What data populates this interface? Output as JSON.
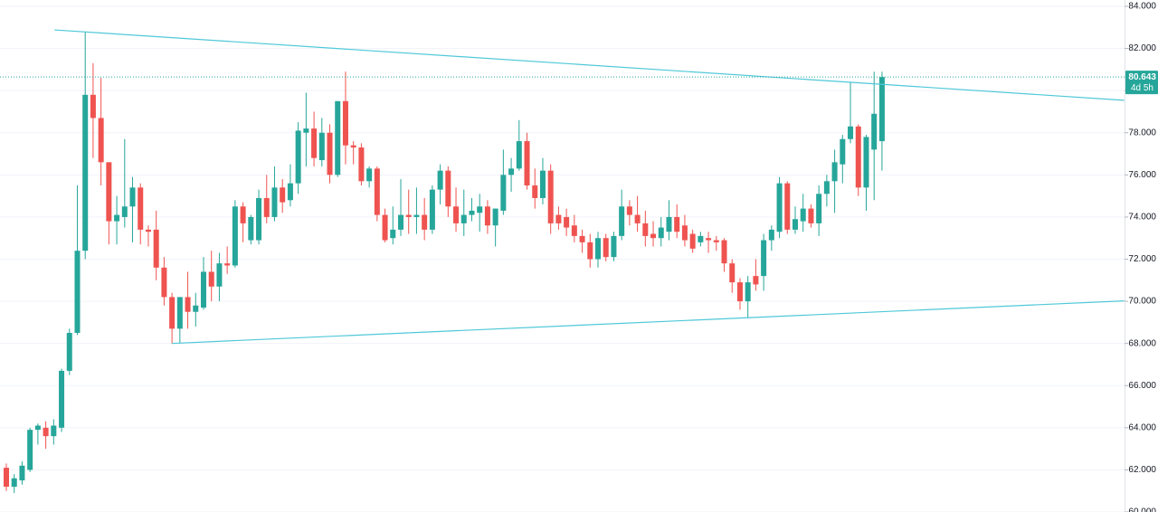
{
  "chart_data": {
    "type": "candlestick",
    "up_color": "#26a69a",
    "down_color": "#ef5350",
    "line_color": "#4fc8d8",
    "ylim": [
      60,
      84.3
    ],
    "yticks": [
      {
        "value": 60,
        "label": "60.000"
      },
      {
        "value": 62,
        "label": "62.000"
      },
      {
        "value": 64,
        "label": "64.000"
      },
      {
        "value": 66,
        "label": "66.000"
      },
      {
        "value": 68,
        "label": "68.000"
      },
      {
        "value": 70,
        "label": "70.000"
      },
      {
        "value": 72,
        "label": "72.000"
      },
      {
        "value": 74,
        "label": "74.000"
      },
      {
        "value": 76,
        "label": "76.000"
      },
      {
        "value": 78,
        "label": "78.000"
      },
      {
        "value": 80,
        "label": "80.000"
      },
      {
        "value": 82,
        "label": "82.000"
      },
      {
        "value": 84,
        "label": "84.000"
      }
    ],
    "grid": true,
    "last_price": 80.643,
    "countdown": "4d 5h",
    "trendlines": [
      {
        "x": [
          6.1,
          141.7
        ],
        "y": [
          82.88,
          79.54
        ]
      },
      {
        "x": [
          21.0,
          141.7
        ],
        "y": [
          68.0,
          70.02
        ]
      }
    ],
    "ohlc": [
      [
        62.1,
        62.3,
        61.0,
        61.2
      ],
      [
        61.2,
        61.8,
        60.9,
        61.6
      ],
      [
        61.5,
        62.4,
        61.3,
        62.2
      ],
      [
        62.0,
        64.0,
        61.9,
        63.9
      ],
      [
        63.9,
        64.2,
        63.2,
        64.1
      ],
      [
        64.0,
        64.3,
        63.0,
        63.6
      ],
      [
        63.6,
        64.4,
        63.2,
        64.1
      ],
      [
        64.0,
        66.8,
        63.8,
        66.7
      ],
      [
        66.7,
        68.7,
        66.5,
        68.5
      ],
      [
        68.5,
        75.5,
        68.4,
        72.4
      ],
      [
        72.4,
        82.8,
        72.0,
        79.8
      ],
      [
        79.8,
        81.3,
        76.8,
        78.7
      ],
      [
        78.7,
        80.6,
        75.5,
        76.6
      ],
      [
        76.6,
        76.6,
        72.7,
        73.8
      ],
      [
        73.8,
        75.0,
        72.7,
        74.1
      ],
      [
        74.0,
        77.7,
        73.5,
        74.5
      ],
      [
        74.5,
        75.9,
        72.8,
        75.4
      ],
      [
        75.4,
        75.6,
        72.7,
        73.4
      ],
      [
        73.4,
        73.6,
        72.6,
        73.3
      ],
      [
        73.4,
        74.3,
        71.0,
        71.6
      ],
      [
        71.6,
        72.1,
        69.8,
        70.2
      ],
      [
        70.2,
        70.4,
        68.0,
        68.7
      ],
      [
        68.7,
        70.2,
        68.0,
        70.2
      ],
      [
        70.2,
        71.4,
        68.7,
        69.5
      ],
      [
        69.5,
        70.4,
        68.8,
        69.8
      ],
      [
        69.7,
        72.1,
        69.6,
        71.4
      ],
      [
        71.4,
        72.4,
        70.0,
        70.7
      ],
      [
        70.7,
        72.3,
        70.0,
        71.8
      ],
      [
        71.8,
        72.6,
        71.3,
        71.7
      ],
      [
        71.7,
        74.8,
        71.6,
        74.5
      ],
      [
        74.5,
        74.7,
        72.8,
        73.7
      ],
      [
        72.9,
        74.1,
        72.7,
        74.0
      ],
      [
        72.9,
        75.3,
        72.7,
        74.9
      ],
      [
        74.9,
        76.0,
        73.7,
        74.0
      ],
      [
        74.0,
        76.4,
        73.8,
        75.4
      ],
      [
        75.4,
        75.8,
        74.2,
        74.7
      ],
      [
        74.8,
        76.5,
        74.5,
        75.6
      ],
      [
        75.6,
        78.5,
        75.1,
        78.1
      ],
      [
        78.0,
        79.9,
        76.4,
        78.2
      ],
      [
        78.2,
        79.0,
        76.4,
        76.8
      ],
      [
        76.7,
        78.7,
        76.4,
        78.0
      ],
      [
        78.0,
        78.4,
        75.6,
        76.0
      ],
      [
        76.0,
        79.5,
        75.9,
        79.5
      ],
      [
        79.5,
        80.9,
        76.5,
        77.4
      ],
      [
        77.4,
        77.6,
        76.5,
        77.3
      ],
      [
        77.3,
        77.5,
        75.5,
        75.7
      ],
      [
        75.7,
        76.4,
        75.4,
        76.3
      ],
      [
        76.3,
        76.4,
        73.8,
        74.1
      ],
      [
        74.1,
        74.4,
        72.8,
        72.9
      ],
      [
        73.0,
        74.5,
        72.7,
        73.4
      ],
      [
        73.4,
        75.8,
        73.1,
        74.1
      ],
      [
        74.1,
        75.3,
        73.2,
        74.0
      ],
      [
        74.0,
        75.4,
        73.2,
        74.1
      ],
      [
        74.1,
        74.9,
        72.9,
        73.4
      ],
      [
        73.4,
        75.5,
        73.2,
        75.3
      ],
      [
        75.3,
        76.5,
        74.6,
        76.2
      ],
      [
        76.2,
        76.4,
        74.0,
        74.5
      ],
      [
        74.5,
        75.4,
        73.3,
        73.7
      ],
      [
        73.7,
        75.3,
        73.1,
        74.1
      ],
      [
        74.1,
        74.9,
        73.8,
        74.3
      ],
      [
        74.2,
        75.1,
        73.3,
        74.5
      ],
      [
        74.5,
        74.8,
        73.2,
        73.6
      ],
      [
        73.6,
        74.4,
        72.6,
        74.4
      ],
      [
        74.3,
        77.2,
        74.1,
        76.0
      ],
      [
        76.0,
        76.8,
        75.2,
        76.3
      ],
      [
        76.3,
        78.6,
        76.2,
        77.6
      ],
      [
        77.6,
        78.0,
        75.3,
        75.5
      ],
      [
        75.5,
        76.3,
        74.4,
        74.9
      ],
      [
        74.9,
        76.8,
        74.6,
        76.2
      ],
      [
        76.2,
        76.5,
        73.2,
        73.7
      ],
      [
        74.1,
        74.5,
        73.4,
        73.7
      ],
      [
        74.0,
        74.4,
        73.1,
        73.5
      ],
      [
        73.6,
        74.1,
        72.8,
        73.1
      ],
      [
        73.1,
        73.4,
        72.3,
        72.8
      ],
      [
        72.8,
        73.2,
        71.6,
        72.0
      ],
      [
        72.0,
        73.3,
        71.6,
        73.0
      ],
      [
        73.0,
        73.2,
        71.9,
        72.1
      ],
      [
        72.1,
        73.3,
        71.9,
        73.1
      ],
      [
        73.1,
        75.3,
        72.9,
        74.5
      ],
      [
        74.5,
        74.8,
        73.6,
        74.1
      ],
      [
        74.1,
        75.0,
        73.3,
        73.7
      ],
      [
        73.7,
        74.3,
        72.6,
        73.1
      ],
      [
        73.2,
        73.8,
        72.6,
        73.0
      ],
      [
        73.0,
        74.0,
        72.6,
        73.5
      ],
      [
        73.3,
        74.8,
        72.9,
        74.0
      ],
      [
        74.0,
        74.6,
        73.0,
        73.3
      ],
      [
        73.6,
        74.1,
        72.6,
        72.9
      ],
      [
        73.2,
        73.4,
        72.3,
        72.5
      ],
      [
        72.8,
        73.3,
        72.6,
        73.1
      ],
      [
        73.0,
        73.3,
        72.3,
        72.9
      ],
      [
        72.9,
        73.1,
        72.4,
        72.8
      ],
      [
        72.9,
        73.0,
        71.4,
        71.8
      ],
      [
        71.8,
        72.0,
        70.4,
        70.9
      ],
      [
        70.9,
        71.1,
        69.6,
        70.0
      ],
      [
        70.0,
        71.2,
        69.2,
        70.9
      ],
      [
        71.2,
        72.0,
        70.5,
        70.8
      ],
      [
        71.2,
        73.2,
        70.5,
        72.9
      ],
      [
        72.9,
        73.6,
        72.4,
        73.4
      ],
      [
        73.3,
        75.9,
        73.0,
        75.6
      ],
      [
        75.6,
        75.7,
        73.2,
        73.4
      ],
      [
        73.4,
        74.5,
        73.2,
        73.9
      ],
      [
        73.8,
        75.1,
        73.3,
        74.4
      ],
      [
        74.4,
        74.6,
        73.5,
        73.7
      ],
      [
        73.7,
        75.5,
        73.1,
        75.1
      ],
      [
        75.1,
        76.0,
        74.5,
        75.7
      ],
      [
        75.7,
        77.2,
        74.2,
        76.6
      ],
      [
        76.5,
        77.9,
        75.6,
        77.7
      ],
      [
        77.7,
        80.4,
        77.5,
        78.3
      ],
      [
        78.3,
        78.4,
        75.0,
        75.4
      ],
      [
        75.4,
        77.9,
        74.3,
        77.8
      ],
      [
        77.2,
        80.9,
        74.8,
        78.9
      ],
      [
        77.6,
        80.9,
        76.2,
        80.643
      ]
    ]
  }
}
